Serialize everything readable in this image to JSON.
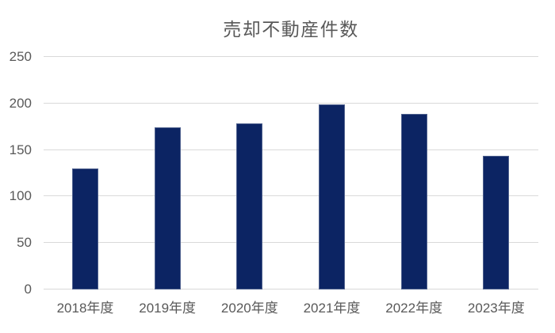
{
  "chart_data": {
    "type": "bar",
    "title": "売却不動産件数",
    "categories": [
      "2018年度",
      "2019年度",
      "2020年度",
      "2021年度",
      "2022年度",
      "2023年度"
    ],
    "values": [
      130,
      174,
      179,
      199,
      189,
      144
    ],
    "xlabel": "",
    "ylabel": "",
    "ylim": [
      0,
      250
    ],
    "yticks": [
      0,
      50,
      100,
      150,
      200,
      250
    ],
    "grid": true,
    "legend": "none",
    "colors": {
      "bar": "#0C2463",
      "grid": "#D9D9D9",
      "axis_text": "#595959",
      "title_text": "#595959",
      "background": "#FFFFFF"
    }
  }
}
